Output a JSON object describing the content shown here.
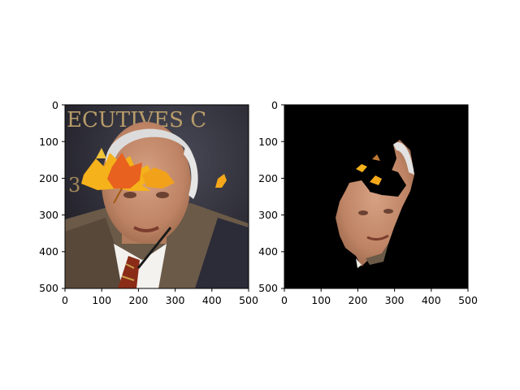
{
  "figure": {
    "panels": [
      {
        "id": "left",
        "content": "face photo with autumn leaf overlay",
        "xlim": [
          0,
          500
        ],
        "ylim": [
          500,
          0
        ],
        "xticks": [
          "0",
          "100",
          "200",
          "300",
          "400",
          "500"
        ],
        "yticks": [
          "0",
          "100",
          "200",
          "300",
          "400",
          "500"
        ],
        "background_text": "ECUTIVES C"
      },
      {
        "id": "right",
        "content": "segmented face on black background",
        "xlim": [
          0,
          500
        ],
        "ylim": [
          500,
          0
        ],
        "xticks": [
          "0",
          "100",
          "200",
          "300",
          "400",
          "500"
        ],
        "yticks": [
          "0",
          "100",
          "200",
          "300",
          "400",
          "500"
        ]
      }
    ],
    "colors": {
      "skin": "#c98f6f",
      "hair": "#dedede",
      "suit": "#6a5a4a",
      "tie": "#8a2d1b",
      "leaf_orange": "#f28a1a",
      "leaf_yellow": "#f5b21a",
      "background_dark": "#2a2832"
    }
  }
}
